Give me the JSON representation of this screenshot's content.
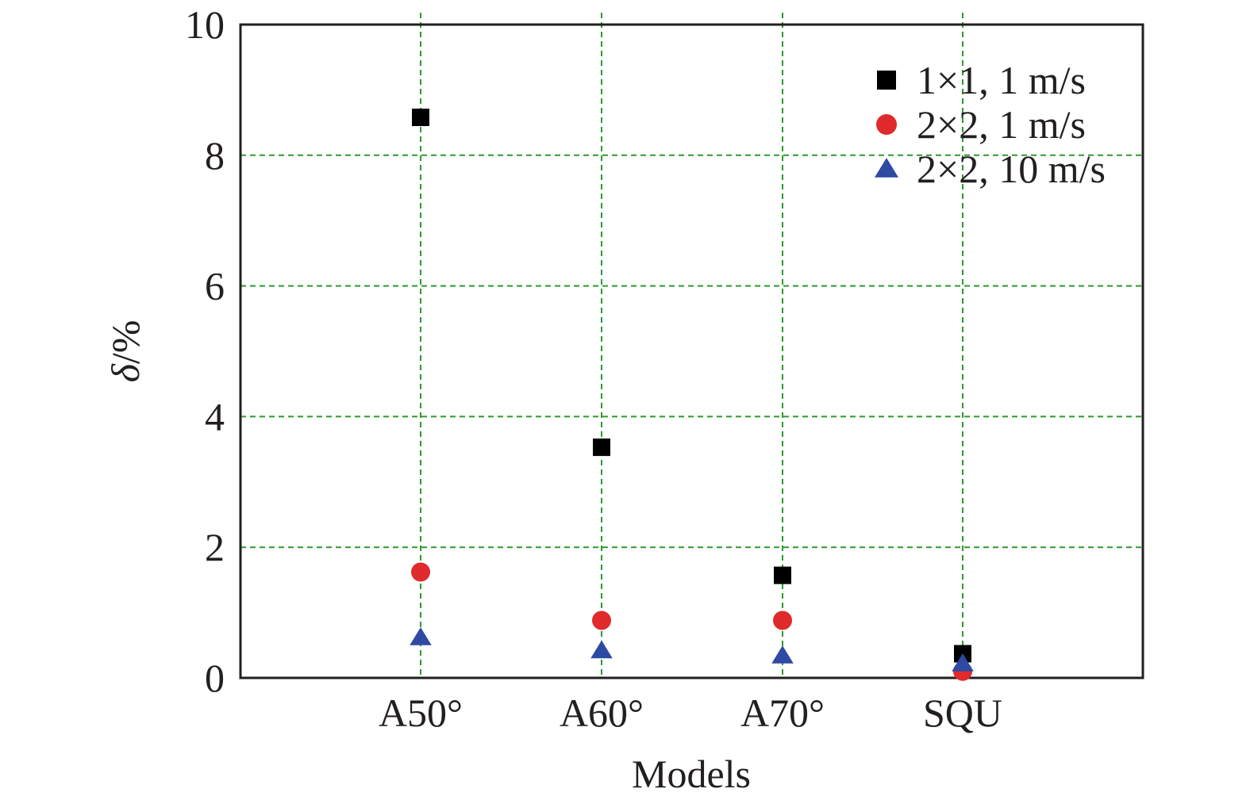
{
  "chart_data": {
    "type": "scatter",
    "categories": [
      "A50°",
      "A60°",
      "A70°",
      "SQU"
    ],
    "series": [
      {
        "name": "1×1, 1 m/s",
        "marker": "square",
        "color": "#000000",
        "values": [
          8.58,
          3.53,
          1.57,
          0.37
        ]
      },
      {
        "name": "2×2, 1 m/s",
        "marker": "circle",
        "color": "#e02a2b",
        "values": [
          1.62,
          0.88,
          0.88,
          0.1
        ]
      },
      {
        "name": "2×2, 10 m/s",
        "marker": "triangle",
        "color": "#2e4aa3",
        "values": [
          0.62,
          0.42,
          0.34,
          0.22
        ]
      }
    ],
    "xlabel": "Models",
    "ylabel": "δ/%",
    "ylim": [
      0,
      10
    ],
    "yticks": [
      "0",
      "2",
      "4",
      "6",
      "8",
      "10"
    ],
    "grid": true,
    "grid_color": "#2e9a2e",
    "legend_position": "top-right"
  }
}
